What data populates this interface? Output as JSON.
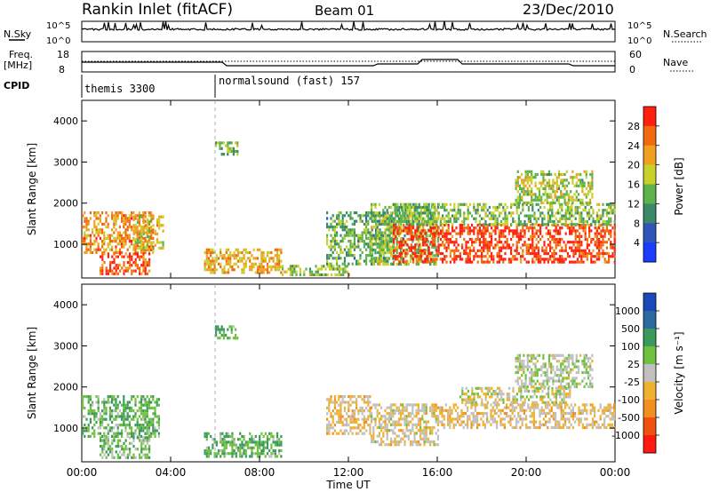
{
  "header": {
    "station": "Rankin Inlet (fitACF)",
    "beam": "Beam 01",
    "date": "23/Dec/2010"
  },
  "left_labels": {
    "nsky": "N.Sky",
    "freq": "Freq.",
    "freq_unit": "[MHz]",
    "cpid": "CPID"
  },
  "right_labels": {
    "nsearch": "N.Search",
    "nave": "Nave"
  },
  "ticks": {
    "noise_left": [
      "10^5",
      "10^0"
    ],
    "noise_right": [
      "10^5",
      "10^0"
    ],
    "freq_left": [
      "18",
      "8"
    ],
    "freq_right": [
      "60",
      "0"
    ]
  },
  "cpid": {
    "segments": [
      {
        "label": "themis 3300",
        "start_hour": 0
      },
      {
        "label": "normalsound (fast) 157",
        "start_hour": 6.0
      }
    ]
  },
  "colors": {
    "power": [
      "#1a3cff",
      "#2f55b8",
      "#3a8a6a",
      "#5db34a",
      "#c8d02a",
      "#f0a020",
      "#f06a10",
      "#ff2010"
    ],
    "velocity": [
      "#ff1a10",
      "#f05010",
      "#f09020",
      "#f0b030",
      "#c0c0c0",
      "#70c040",
      "#3a9a5a",
      "#2a6aa0",
      "#1a4ab8"
    ]
  },
  "chart_data": [
    {
      "type": "heatmap",
      "title": "",
      "xlabel": "",
      "ylabel": "Slant Range [km]",
      "xlim": [
        0,
        24
      ],
      "ylim": [
        180,
        4500
      ],
      "xticks": [
        "00:00",
        "04:00",
        "08:00",
        "12:00",
        "16:00",
        "20:00",
        "00:00"
      ],
      "yticks": [
        "1000",
        "2000",
        "3000",
        "4000"
      ],
      "colorbar": {
        "label": "Power [dB]",
        "ticks": [
          "28",
          "24",
          "20",
          "16",
          "12",
          "8",
          "4"
        ],
        "range": [
          0,
          30
        ]
      },
      "regions": [
        {
          "x0": 0.0,
          "x1": 3.2,
          "y0": 800,
          "y1": 1800,
          "value": 22
        },
        {
          "x0": 0.8,
          "x1": 3.0,
          "y0": 250,
          "y1": 800,
          "value": 26
        },
        {
          "x0": 2.3,
          "x1": 3.7,
          "y0": 900,
          "y1": 1700,
          "value": 18
        },
        {
          "x0": 5.5,
          "x1": 9.0,
          "y0": 300,
          "y1": 900,
          "value": 20
        },
        {
          "x0": 9.0,
          "x1": 12.0,
          "y0": 250,
          "y1": 500,
          "value": 14
        },
        {
          "x0": 11.0,
          "x1": 14.0,
          "y0": 500,
          "y1": 1800,
          "value": 12
        },
        {
          "x0": 13.0,
          "x1": 16.0,
          "y0": 500,
          "y1": 2000,
          "value": 14
        },
        {
          "x0": 14.0,
          "x1": 24.0,
          "y0": 600,
          "y1": 1500,
          "value": 27
        },
        {
          "x0": 14.0,
          "x1": 24.0,
          "y0": 1500,
          "y1": 2000,
          "value": 14
        },
        {
          "x0": 19.5,
          "x1": 23.0,
          "y0": 2000,
          "y1": 2800,
          "value": 16
        },
        {
          "x0": 6.0,
          "x1": 7.0,
          "y0": 3200,
          "y1": 3500,
          "value": 14
        }
      ]
    },
    {
      "type": "heatmap",
      "title": "",
      "xlabel": "Time UT",
      "ylabel": "Slant Range [km]",
      "xlim": [
        0,
        24
      ],
      "ylim": [
        180,
        4500
      ],
      "xticks": [
        "00:00",
        "04:00",
        "08:00",
        "12:00",
        "16:00",
        "20:00",
        "00:00"
      ],
      "yticks": [
        "1000",
        "2000",
        "3000",
        "4000"
      ],
      "colorbar": {
        "label": "Velocity [m s⁻¹]",
        "ticks": [
          "1000",
          "500",
          "100",
          "25",
          "-25",
          "-100",
          "-500",
          "-1000"
        ],
        "range": [
          -1000,
          1000
        ]
      },
      "regions": [
        {
          "x0": 0.0,
          "x1": 3.5,
          "y0": 800,
          "y1": 1800,
          "value": 300
        },
        {
          "x0": 0.8,
          "x1": 3.0,
          "y0": 250,
          "y1": 800,
          "value": 200
        },
        {
          "x0": 5.5,
          "x1": 9.0,
          "y0": 300,
          "y1": 900,
          "value": 300
        },
        {
          "x0": 11.0,
          "x1": 13.0,
          "y0": 900,
          "y1": 1800,
          "value": -150
        },
        {
          "x0": 13.0,
          "x1": 16.0,
          "y0": 600,
          "y1": 1600,
          "value": -100
        },
        {
          "x0": 16.0,
          "x1": 24.0,
          "y0": 1000,
          "y1": 1600,
          "value": -150
        },
        {
          "x0": 17.0,
          "x1": 22.0,
          "y0": 1600,
          "y1": 2000,
          "value": 0
        },
        {
          "x0": 19.5,
          "x1": 23.0,
          "y0": 2000,
          "y1": 2800,
          "value": 80
        },
        {
          "x0": 6.0,
          "x1": 7.0,
          "y0": 3200,
          "y1": 3500,
          "value": 300
        }
      ]
    }
  ]
}
